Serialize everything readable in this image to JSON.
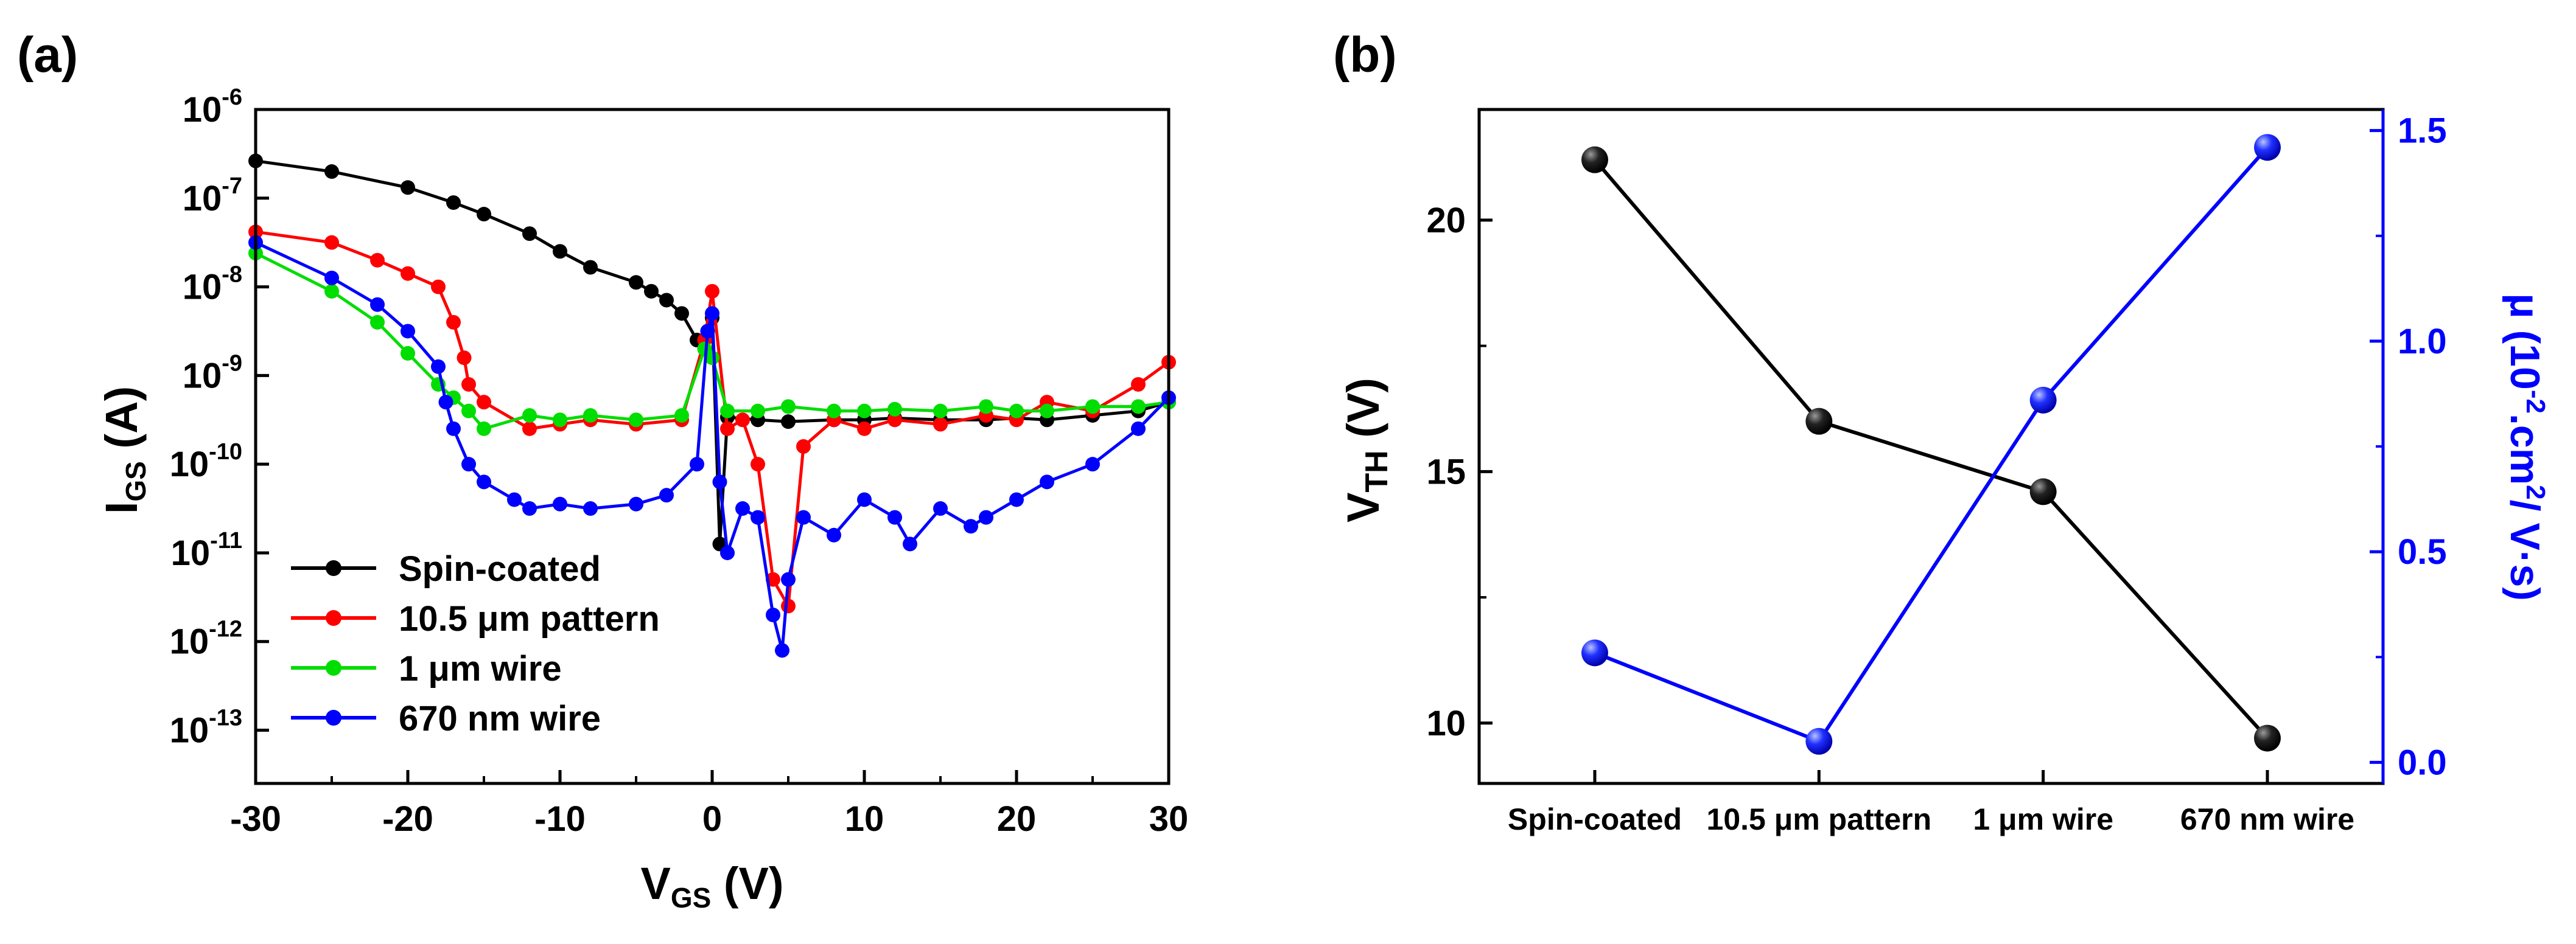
{
  "panel_a": {
    "label": "(a)",
    "chart_data": {
      "type": "scatter-line",
      "xlabel_main": "V",
      "xlabel_sub": "GS",
      "xlabel_unit": " (V)",
      "ylabel_main": "I",
      "ylabel_sub": "GS",
      "ylabel_unit": " (A)",
      "yscale": "log",
      "xlim": [
        -30,
        30
      ],
      "ylim_exp": [
        -13.6,
        -6
      ],
      "xticks": [
        -30,
        -20,
        -10,
        0,
        10,
        20,
        30
      ],
      "yticks_exp": [
        -13,
        -12,
        -11,
        -10,
        -9,
        -8,
        -7,
        -6
      ],
      "series": [
        {
          "name": "Spin-coated",
          "color": "#000000",
          "x": [
            -30,
            -25,
            -20,
            -17,
            -15,
            -12,
            -10,
            -8,
            -5,
            -4,
            -3,
            -2,
            -1,
            -0.3,
            0,
            0.5,
            1,
            3,
            5,
            8,
            10,
            12,
            15,
            18,
            20,
            22,
            25,
            28,
            30
          ],
          "y_exp": [
            -6.58,
            -6.7,
            -6.88,
            -7.05,
            -7.18,
            -7.4,
            -7.6,
            -7.78,
            -7.95,
            -8.05,
            -8.15,
            -8.3,
            -8.6,
            -8.5,
            -8.35,
            -10.9,
            -9.47,
            -9.5,
            -9.52,
            -9.5,
            -9.5,
            -9.48,
            -9.5,
            -9.5,
            -9.48,
            -9.5,
            -9.45,
            -9.4,
            -9.3
          ]
        },
        {
          "name": "10.5 μm pattern",
          "color": "#ff0000",
          "x": [
            -30,
            -25,
            -22,
            -20,
            -18,
            -17,
            -16.3,
            -16,
            -15,
            -12,
            -10,
            -8,
            -5,
            -2,
            -0.5,
            0,
            1,
            2,
            3,
            4,
            5,
            6,
            8,
            10,
            12,
            15,
            18,
            20,
            22,
            25,
            28,
            30
          ],
          "y_exp": [
            -7.38,
            -7.5,
            -7.7,
            -7.85,
            -8.0,
            -8.4,
            -8.8,
            -9.1,
            -9.3,
            -9.6,
            -9.55,
            -9.5,
            -9.55,
            -9.5,
            -8.6,
            -8.05,
            -9.6,
            -9.5,
            -10.0,
            -11.3,
            -11.6,
            -9.8,
            -9.5,
            -9.6,
            -9.5,
            -9.55,
            -9.45,
            -9.5,
            -9.3,
            -9.4,
            -9.1,
            -8.85
          ]
        },
        {
          "name": "1 μm wire",
          "color": "#00dd00",
          "x": [
            -30,
            -25,
            -22,
            -20,
            -18,
            -17,
            -16,
            -15,
            -12,
            -10,
            -8,
            -5,
            -2,
            -0.5,
            0,
            1,
            3,
            5,
            8,
            10,
            12,
            15,
            18,
            20,
            22,
            25,
            28,
            30
          ],
          "y_exp": [
            -7.62,
            -8.05,
            -8.4,
            -8.75,
            -9.1,
            -9.25,
            -9.4,
            -9.6,
            -9.45,
            -9.5,
            -9.45,
            -9.5,
            -9.45,
            -8.7,
            -8.8,
            -9.4,
            -9.4,
            -9.35,
            -9.4,
            -9.4,
            -9.38,
            -9.4,
            -9.35,
            -9.4,
            -9.4,
            -9.35,
            -9.35,
            -9.3
          ]
        },
        {
          "name": "670 nm wire",
          "color": "#0000ff",
          "x": [
            -30,
            -25,
            -22,
            -20,
            -18,
            -17.5,
            -17,
            -16,
            -15,
            -13,
            -12,
            -10,
            -8,
            -5,
            -3,
            -1,
            -0.3,
            0,
            0.5,
            1,
            2,
            3,
            4,
            4.6,
            5,
            6,
            8,
            10,
            12,
            13,
            15,
            17,
            18,
            20,
            22,
            25,
            28,
            30
          ],
          "y_exp": [
            -7.5,
            -7.9,
            -8.2,
            -8.5,
            -8.9,
            -9.3,
            -9.6,
            -10.0,
            -10.2,
            -10.4,
            -10.5,
            -10.45,
            -10.5,
            -10.45,
            -10.35,
            -10.0,
            -8.5,
            -8.3,
            -10.2,
            -11.0,
            -10.5,
            -10.6,
            -11.7,
            -12.1,
            -11.3,
            -10.6,
            -10.8,
            -10.4,
            -10.6,
            -10.9,
            -10.5,
            -10.7,
            -10.6,
            -10.4,
            -10.2,
            -10.0,
            -9.6,
            -9.25
          ]
        }
      ]
    }
  },
  "panel_b": {
    "label": "(b)",
    "chart_data": {
      "type": "dual-axis-line",
      "categories": [
        "Spin-coated",
        "10.5 μm pattern",
        "1 μm wire",
        "670 nm wire"
      ],
      "ylabel_left_main": "V",
      "ylabel_left_sub": "TH",
      "ylabel_left_unit": " (V)",
      "ylabel_right_prefix": "μ (10",
      "ylabel_right_exp1": "-2",
      "ylabel_right_mid": ".cm",
      "ylabel_right_exp2": "2",
      "ylabel_right_suffix": "/ V·s)",
      "ylim_left": [
        8.8,
        22.2
      ],
      "ylim_right": [
        -0.05,
        1.55
      ],
      "yticks_left": [
        10,
        15,
        20
      ],
      "yticks_right": [
        0.0,
        0.5,
        1.0,
        1.5
      ],
      "yticks_right_labels": [
        "0.0",
        "0.5",
        "1.0",
        "1.5"
      ],
      "series": [
        {
          "name": "VTH",
          "axis": "left",
          "color": "#000000",
          "values": [
            21.2,
            16.0,
            14.6,
            9.7
          ]
        },
        {
          "name": "μ",
          "axis": "right",
          "color": "#0000ff",
          "values": [
            0.26,
            0.05,
            0.86,
            1.46
          ]
        }
      ]
    }
  }
}
